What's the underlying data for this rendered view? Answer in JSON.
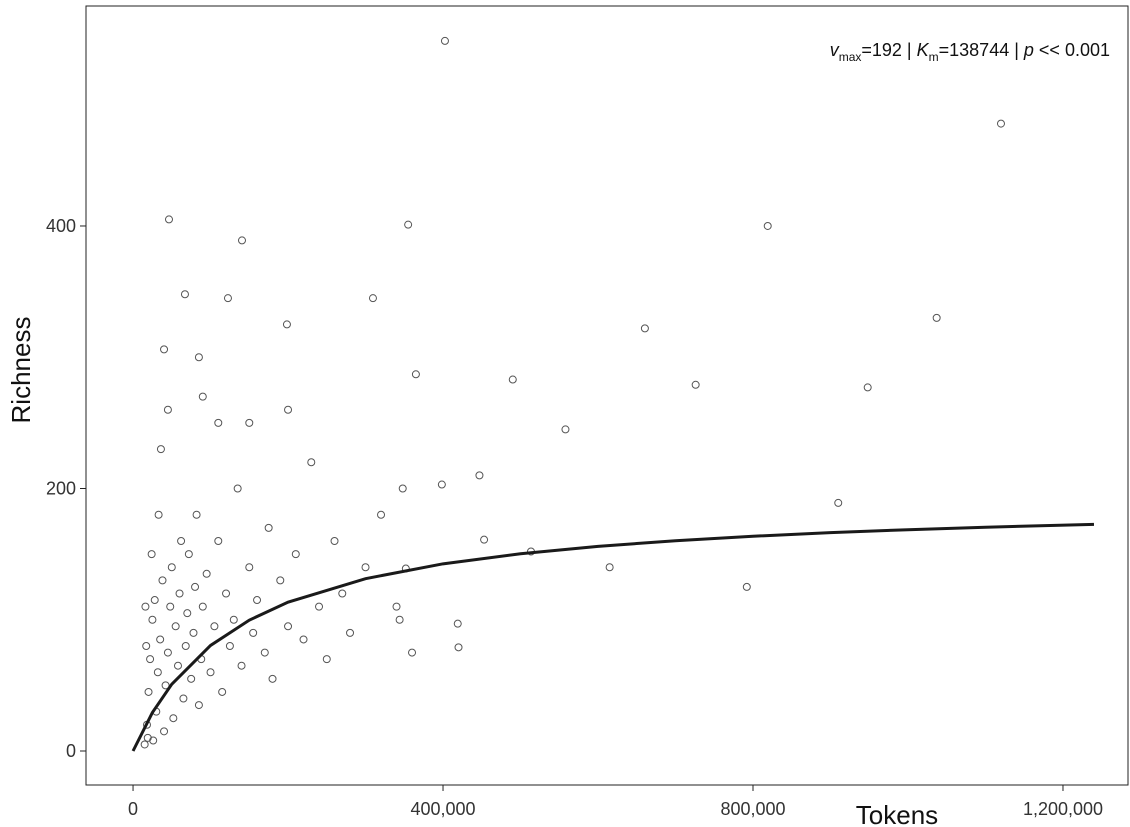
{
  "chart_data": {
    "type": "scatter",
    "annotation": [
      "v",
      "max",
      "=192 | ",
      "K",
      "m",
      "=138744 | ",
      "p",
      " << 0.001"
    ],
    "x_label": "Tokens",
    "y_label": "Richness",
    "xlim": [
      -60700,
      1283900
    ],
    "ylim": [
      -25.9,
      567.6
    ],
    "xticks": [
      0,
      {
        "value": 400000,
        "label": "400,000"
      },
      {
        "value": 800000,
        "label": "800,000"
      },
      {
        "value": 1200000,
        "label": "1,200,000"
      }
    ],
    "yticks": [
      0,
      200,
      400
    ],
    "series": [
      {
        "type": "scatter",
        "color": "#555555",
        "x": [
          402500,
          1120000,
          46400,
          355000,
          140600,
          819000,
          67000,
          122500,
          309600,
          40000,
          198600,
          660500,
          1037000,
          726000,
          948000,
          910000,
          792000,
          615000,
          558000,
          490000,
          365000,
          420000,
          419000,
          348000,
          352000,
          447000,
          398500,
          513500,
          453000,
          344000,
          15000,
          18000,
          20000,
          22000,
          25000,
          28000,
          30000,
          32000,
          35000,
          38000,
          40000,
          42000,
          45000,
          48000,
          50000,
          52000,
          55000,
          58000,
          60000,
          62000,
          65000,
          68000,
          70000,
          72000,
          75000,
          78000,
          80000,
          82000,
          85000,
          88000,
          90000,
          95000,
          100000,
          105000,
          110000,
          115000,
          120000,
          125000,
          130000,
          135000,
          140000,
          150000,
          155000,
          160000,
          170000,
          175000,
          180000,
          190000,
          200000,
          210000,
          220000,
          230000,
          240000,
          250000,
          260000,
          270000,
          280000,
          300000,
          320000,
          340000,
          360000,
          16000,
          17000,
          19000,
          24000,
          26000,
          33000,
          36000,
          45000,
          85000,
          90000,
          110000,
          150000,
          200000
        ],
        "values": [
          541,
          478,
          405,
          401,
          389,
          400,
          348,
          345,
          345,
          306,
          325,
          322,
          330,
          279,
          277,
          189,
          125,
          140,
          245,
          283,
          287,
          79,
          97,
          200,
          139,
          210,
          203,
          152,
          161,
          100,
          5,
          20,
          45,
          70,
          100,
          115,
          30,
          60,
          85,
          130,
          15,
          50,
          75,
          110,
          140,
          25,
          95,
          65,
          120,
          160,
          40,
          80,
          105,
          150,
          55,
          90,
          125,
          180,
          35,
          70,
          110,
          135,
          60,
          95,
          160,
          45,
          120,
          80,
          100,
          200,
          65,
          140,
          90,
          115,
          75,
          170,
          55,
          130,
          95,
          150,
          85,
          220,
          110,
          70,
          160,
          120,
          90,
          140,
          180,
          110,
          75,
          110,
          80,
          10,
          150,
          8,
          180,
          230,
          260,
          300,
          270,
          250,
          250,
          260
        ]
      },
      {
        "type": "line",
        "color": "#1a1a1a",
        "x": [
          0,
          25000,
          50000,
          100000,
          150000,
          200000,
          300000,
          400000,
          500000,
          600000,
          700000,
          800000,
          900000,
          1000000,
          1100000,
          1240000
        ],
        "values": [
          0,
          29.3,
          50.9,
          80.4,
          99.7,
          113.4,
          131.3,
          142.6,
          150.3,
          155.9,
          160.2,
          163.6,
          166.4,
          168.6,
          170.5,
          172.7
        ]
      }
    ]
  }
}
